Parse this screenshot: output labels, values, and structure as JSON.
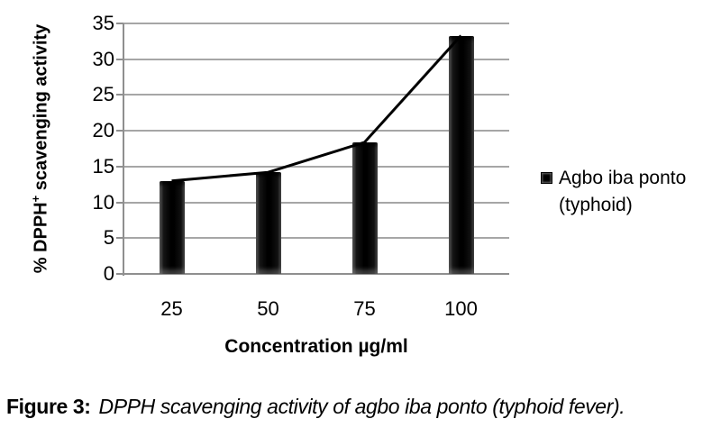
{
  "figure": {
    "caption_label": "Figure 3:",
    "caption_text": "DPPH scavenging activity of agbo iba ponto (typhoid fever)."
  },
  "axes": {
    "y_title_prefix": "% DPPH",
    "y_title_sup": "+",
    "y_title_suffix": " scavenging activity",
    "x_title": "Concentration µg/ml"
  },
  "legend": {
    "line1": "Agbo iba ponto",
    "line2": "(typhoid)"
  },
  "chart_data": {
    "type": "bar",
    "overlay_line": true,
    "title": "",
    "categories": [
      "25",
      "50",
      "75",
      "100"
    ],
    "series": [
      {
        "name": "Agbo iba ponto (typhoid)",
        "values": [
          13,
          14.2,
          18.4,
          33.3
        ]
      }
    ],
    "xlabel": "Concentration µg/ml",
    "ylabel": "% DPPH+ scavenging activity",
    "ylim": [
      0,
      35
    ],
    "yticks": [
      0,
      5,
      10,
      15,
      20,
      25,
      30,
      35
    ],
    "grid": true,
    "legend_position": "right",
    "colors": {
      "bar": "#000000",
      "line": "#000000",
      "gridline": "#a6a6a6",
      "axis": "#8f8f8f",
      "text": "#000000"
    }
  }
}
